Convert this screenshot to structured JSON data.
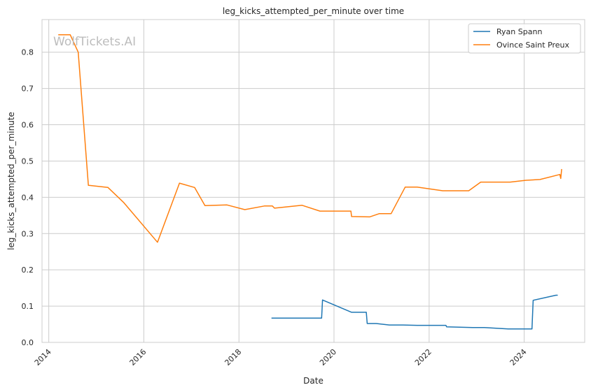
{
  "watermark": "WolfTickets.AI",
  "chart_data": {
    "type": "line",
    "title": "leg_kicks_attempted_per_minute over time",
    "xlabel": "Date",
    "ylabel": "leg_kicks_attempted_per_minute",
    "xlim": [
      "2013-11-10",
      "2025-04-10"
    ],
    "ylim": [
      0,
      0.89
    ],
    "x_ticks": [
      "2014",
      "2016",
      "2018",
      "2020",
      "2022",
      "2024"
    ],
    "y_ticks": [
      "0.0",
      "0.1",
      "0.2",
      "0.3",
      "0.4",
      "0.5",
      "0.6",
      "0.7",
      "0.8"
    ],
    "grid": true,
    "legend_position": "top-right",
    "series": [
      {
        "name": "Ryan Spann",
        "color": "#1f77b4",
        "points": [
          [
            "2018-09-08",
            0.067
          ],
          [
            "2019-09-28",
            0.067
          ],
          [
            "2019-10-05",
            0.117
          ],
          [
            "2020-05-15",
            0.083
          ],
          [
            "2020-09-05",
            0.083
          ],
          [
            "2020-09-12",
            0.052
          ],
          [
            "2020-11-20",
            0.052
          ],
          [
            "2021-03-01",
            0.048
          ],
          [
            "2021-06-15",
            0.048
          ],
          [
            "2021-10-01",
            0.047
          ],
          [
            "2022-05-10",
            0.047
          ],
          [
            "2022-05-15",
            0.043
          ],
          [
            "2022-12-01",
            0.041
          ],
          [
            "2023-03-01",
            0.041
          ],
          [
            "2023-09-01",
            0.037
          ],
          [
            "2024-03-01",
            0.037
          ],
          [
            "2024-03-10",
            0.116
          ],
          [
            "2024-09-01",
            0.13
          ],
          [
            "2024-09-15",
            0.13
          ]
        ]
      },
      {
        "name": "Ovince Saint Preux",
        "color": "#ff7f0e",
        "points": [
          [
            "2014-03-15",
            0.848
          ],
          [
            "2014-06-15",
            0.848
          ],
          [
            "2014-08-15",
            0.8
          ],
          [
            "2014-11-01",
            0.433
          ],
          [
            "2015-04-01",
            0.427
          ],
          [
            "2015-08-01",
            0.385
          ],
          [
            "2016-04-15",
            0.276
          ],
          [
            "2016-10-01",
            0.439
          ],
          [
            "2017-01-25",
            0.427
          ],
          [
            "2017-04-15",
            0.377
          ],
          [
            "2017-10-01",
            0.379
          ],
          [
            "2018-02-15",
            0.366
          ],
          [
            "2018-07-15",
            0.376
          ],
          [
            "2018-09-15",
            0.376
          ],
          [
            "2018-10-01",
            0.37
          ],
          [
            "2019-05-01",
            0.378
          ],
          [
            "2019-09-15",
            0.362
          ],
          [
            "2020-05-10",
            0.362
          ],
          [
            "2020-05-15",
            0.347
          ],
          [
            "2020-10-01",
            0.346
          ],
          [
            "2020-12-15",
            0.355
          ],
          [
            "2021-03-15",
            0.355
          ],
          [
            "2021-07-01",
            0.428
          ],
          [
            "2021-10-01",
            0.428
          ],
          [
            "2022-04-15",
            0.418
          ],
          [
            "2022-11-01",
            0.418
          ],
          [
            "2023-02-01",
            0.442
          ],
          [
            "2023-09-15",
            0.442
          ],
          [
            "2024-01-15",
            0.447
          ],
          [
            "2024-05-01",
            0.449
          ],
          [
            "2024-10-01",
            0.463
          ],
          [
            "2024-10-08",
            0.452
          ],
          [
            "2024-10-15",
            0.478
          ]
        ]
      }
    ]
  }
}
